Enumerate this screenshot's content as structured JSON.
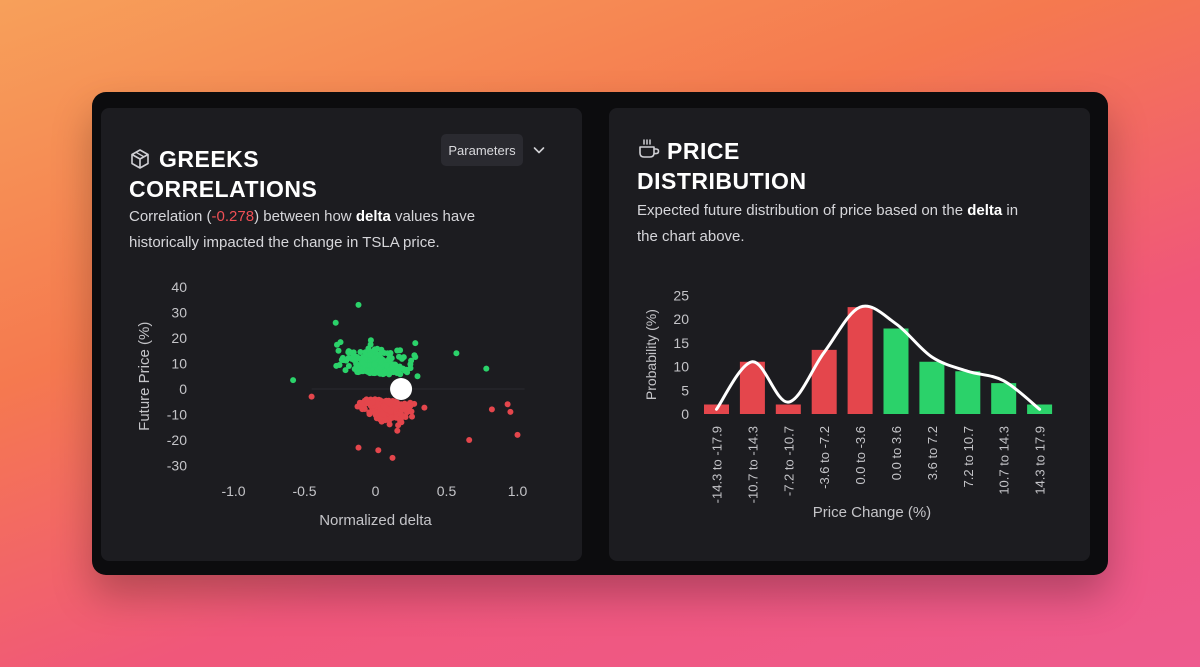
{
  "greeks": {
    "title_line1": "GREEKS",
    "title_line2": "CORRELATIONS",
    "icon": "cube-icon",
    "parameters_label": "Parameters",
    "desc_prefix": "Correlation (",
    "desc_value": "-0.278",
    "desc_mid": ") between how ",
    "desc_highlight": "delta",
    "desc_suffix": " values have",
    "desc_line2": "historically impacted the change in TSLA price."
  },
  "price": {
    "title_line1": "PRICE",
    "title_line2": "DISTRIBUTION",
    "icon": "coffee-cup-icon",
    "desc_prefix": "Expected future distribution of price based on the ",
    "desc_highlight": "delta",
    "desc_suffix": " in",
    "desc_line2": "the chart above."
  },
  "colors": {
    "positive": "#2bd26a",
    "negative": "#e4464c",
    "marker": "#ffffff",
    "curve": "#ffffff"
  },
  "chart_data": [
    {
      "type": "scatter",
      "xlabel": "Normalized delta",
      "ylabel": "Future Price (%)",
      "xlim": [
        -1.0,
        1.0
      ],
      "ylim": [
        -30,
        40
      ],
      "xticks": [
        "-1.0",
        "-0.5",
        "0",
        "0.5",
        "1.0"
      ],
      "yticks": [
        "40",
        "30",
        "20",
        "10",
        "0",
        "-10",
        "-20",
        "-30"
      ],
      "current_point": {
        "x": 0.18,
        "y": 0
      }
    },
    {
      "type": "bar",
      "xlabel": "Price Change (%)",
      "ylabel": "Probability (%)",
      "ylim": [
        0,
        25
      ],
      "yticks": [
        "25",
        "20",
        "15",
        "10",
        "5",
        "0"
      ],
      "categories": [
        "-14.3 to -17.9",
        "-10.7 to -14.3",
        "-7.2 to -10.7",
        "-3.6 to -7.2",
        "0.0 to -3.6",
        "0.0 to 3.6",
        "3.6 to 7.2",
        "7.2 to 10.7",
        "10.7 to 14.3",
        "14.3 to 17.9"
      ],
      "values": [
        2,
        11,
        2,
        13.5,
        22.5,
        18,
        11,
        9,
        6.5,
        2
      ],
      "signs": [
        "neg",
        "neg",
        "neg",
        "neg",
        "neg",
        "pos",
        "pos",
        "pos",
        "pos",
        "pos"
      ],
      "curve_values": [
        1,
        11,
        2.5,
        13,
        22.5,
        19,
        12,
        9,
        7,
        1
      ]
    }
  ]
}
